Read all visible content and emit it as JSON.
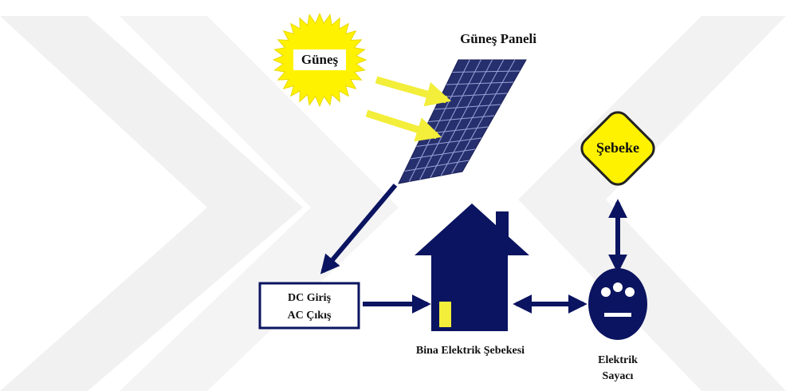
{
  "sun": {
    "label": "Güneş"
  },
  "panel": {
    "label": "Güneş Paneli"
  },
  "grid": {
    "label": "Şebeke"
  },
  "inverter": {
    "lines": [
      "DC Giriş",
      "AC Çıkış"
    ]
  },
  "building": {
    "label": "Bina Elektrik Şebekesi"
  },
  "meter": {
    "lines": [
      "Elektrik",
      "Sayacı"
    ]
  }
}
